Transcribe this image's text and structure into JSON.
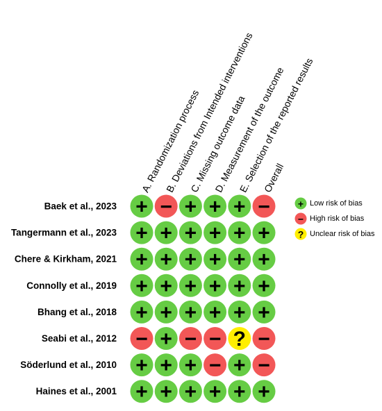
{
  "domains": [
    "A. Randomization process",
    "B. Deviations from Intended interventions",
    "C. Missing outcome data",
    "D. Measurement of the outcome",
    "E. Selection of the reported results",
    "Overall"
  ],
  "rows": [
    {
      "study": "Baek et al., 2023",
      "judgments": [
        "+",
        "−",
        "+",
        "+",
        "+",
        "−"
      ]
    },
    {
      "study": "Tangermann et al., 2023",
      "judgments": [
        "+",
        "+",
        "+",
        "+",
        "+",
        "+"
      ]
    },
    {
      "study": "Chere & Kirkham, 2021",
      "judgments": [
        "+",
        "+",
        "+",
        "+",
        "+",
        "+"
      ]
    },
    {
      "study": "Connolly et al., 2019",
      "judgments": [
        "+",
        "+",
        "+",
        "+",
        "+",
        "+"
      ]
    },
    {
      "study": "Bhang et al., 2018",
      "judgments": [
        "+",
        "+",
        "+",
        "+",
        "+",
        "+"
      ]
    },
    {
      "study": "Seabi et al., 2012",
      "judgments": [
        "−",
        "+",
        "−",
        "−",
        "?",
        "−"
      ]
    },
    {
      "study": "Söderlund et al., 2010",
      "judgments": [
        "+",
        "+",
        "+",
        "−",
        "+",
        "−"
      ]
    },
    {
      "study": "Haines et al., 2001",
      "judgments": [
        "+",
        "+",
        "+",
        "+",
        "+",
        "+"
      ]
    }
  ],
  "legend": [
    {
      "symbol": "+",
      "label": "Low risk of bias",
      "color": "#66cc44"
    },
    {
      "symbol": "−",
      "label": "High risk of bias",
      "color": "#f25757"
    },
    {
      "symbol": "?",
      "label": "Unclear risk of bias",
      "color": "#ffee00"
    }
  ]
}
